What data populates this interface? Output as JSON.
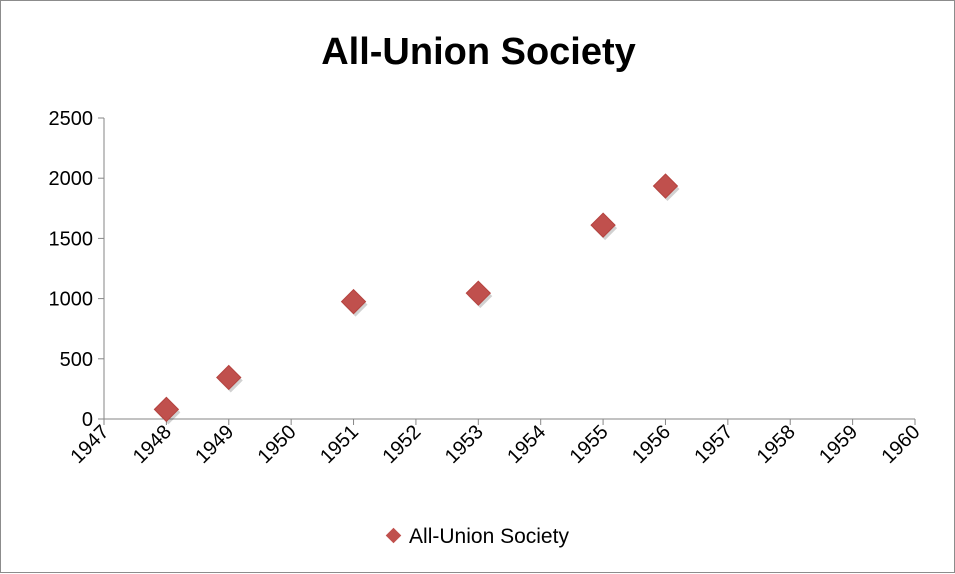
{
  "chart_data": {
    "type": "scatter",
    "title": "All-Union Society",
    "xlabel": "",
    "ylabel": "",
    "xlim": [
      1947,
      1960
    ],
    "ylim": [
      0,
      2500
    ],
    "x_ticks": [
      "1947",
      "1948",
      "1949",
      "1950",
      "1951",
      "1952",
      "1953",
      "1954",
      "1955",
      "1956",
      "1957",
      "1958",
      "1959",
      "1960"
    ],
    "y_ticks": [
      "0",
      "500",
      "1000",
      "1500",
      "2000",
      "2500"
    ],
    "grid": false,
    "legend_position": "bottom",
    "series": [
      {
        "name": "All-Union Society",
        "color": "#c0504d",
        "marker": "diamond",
        "x": [
          1948,
          1949,
          1951,
          1953,
          1955,
          1956
        ],
        "y": [
          80,
          345,
          975,
          1045,
          1610,
          1935
        ]
      }
    ]
  }
}
